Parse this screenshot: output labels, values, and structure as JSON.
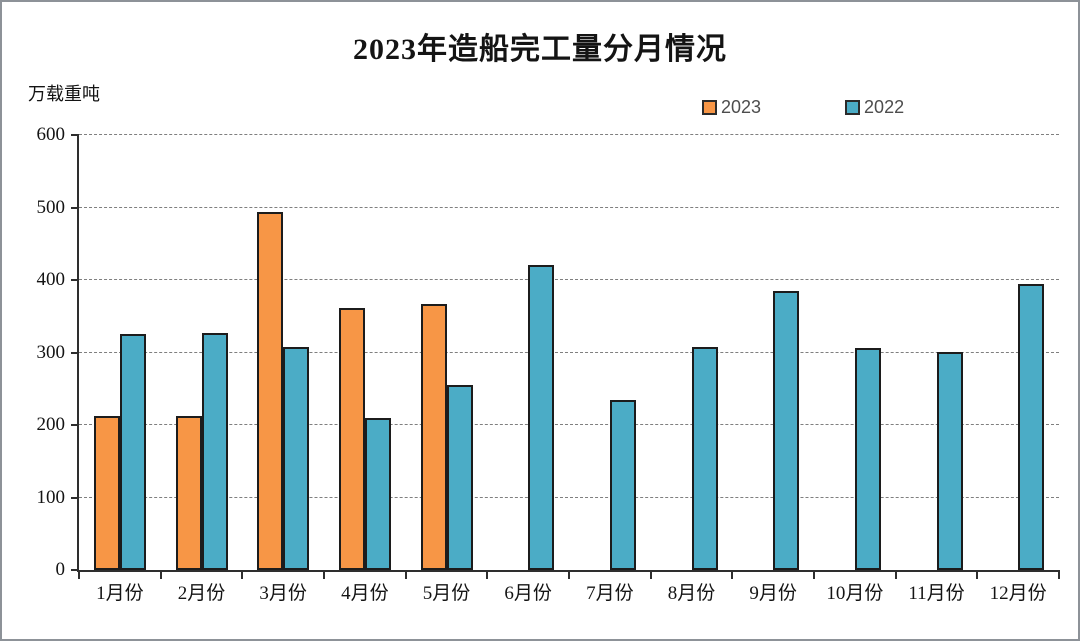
{
  "chart_data": {
    "type": "bar",
    "title": "2023年造船完工量分月情况",
    "ylabel": "万载重吨",
    "xlabel": "",
    "categories": [
      "1月份",
      "2月份",
      "3月份",
      "4月份",
      "5月份",
      "6月份",
      "7月份",
      "8月份",
      "9月份",
      "10月份",
      "11月份",
      "12月份"
    ],
    "series": [
      {
        "name": "2023",
        "color": "#F79646",
        "values": [
          212,
          212,
          494,
          362,
          367,
          null,
          null,
          null,
          null,
          null,
          null,
          null
        ]
      },
      {
        "name": "2022",
        "color": "#4BACC6",
        "values": [
          325,
          327,
          307,
          210,
          255,
          420,
          235,
          307,
          385,
          306,
          301,
          395
        ]
      }
    ],
    "ylim": [
      0,
      600
    ],
    "yticks": [
      0,
      100,
      200,
      300,
      400,
      500,
      600
    ],
    "grid": "horizontal-dashed",
    "legend_position": "top-right",
    "bar_border_color": "#1c1c1c",
    "axis_color": "#2e2e2e",
    "gridline_color": "#7f7f7f",
    "background_color": "#ffffff"
  }
}
